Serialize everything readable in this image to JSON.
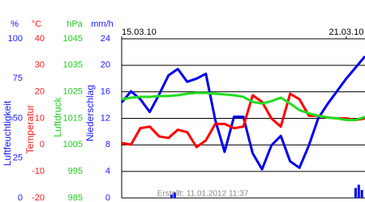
{
  "chart_data": {
    "type": "line",
    "xlim": [
      0,
      156
    ],
    "xticks": [
      {
        "value": 0,
        "label": "15.03.10"
      },
      {
        "value": 144,
        "label": "21.03.10"
      }
    ],
    "grid": true,
    "grid_axis": 3,
    "note": "Erstellt: 11.01.2012 11:37",
    "axes": [
      {
        "unit": "%",
        "label": "Luftfeuchtigkeit",
        "color": "#1a1aff",
        "ylim": [
          0,
          100
        ],
        "yticks": [
          0,
          25,
          50,
          75,
          100
        ]
      },
      {
        "unit": "°C",
        "label": "Temperatur",
        "color": "#ff1a1a",
        "ylim": [
          -20,
          40
        ],
        "yticks": [
          -20,
          -10,
          0,
          10,
          20,
          30,
          40
        ]
      },
      {
        "unit": "hPa",
        "label": "Luftdruck",
        "color": "#22cc22",
        "ylim": [
          985,
          1045
        ],
        "yticks": [
          985,
          995,
          1005,
          1015,
          1025,
          1035,
          1045
        ]
      },
      {
        "unit": "mm/h",
        "label": "Niederschlag",
        "color": "#1a1aff",
        "ylim": [
          0,
          24
        ],
        "yticks": [
          0,
          4,
          8,
          12,
          16,
          20,
          24
        ]
      }
    ],
    "x": [
      0,
      6,
      12,
      18,
      24,
      30,
      36,
      42,
      48,
      54,
      60,
      66,
      72,
      78,
      84,
      90,
      96,
      102,
      108,
      114,
      120,
      126,
      132,
      138,
      144,
      150,
      156
    ],
    "series": [
      {
        "type": "line",
        "axis": 0,
        "color": "#0000ee",
        "values": [
          60,
          67,
          62,
          54,
          65,
          77,
          81,
          73,
          75,
          78,
          49,
          29,
          51,
          51,
          28,
          18,
          33,
          39,
          23,
          19,
          33,
          50,
          59,
          67,
          75,
          82,
          89
        ]
      },
      {
        "type": "line",
        "axis": 1,
        "color": "#ff0000",
        "values": [
          0.7,
          0.1,
          6.3,
          6.9,
          3.2,
          2.6,
          5.7,
          4.8,
          -0.8,
          1.7,
          7.9,
          7.9,
          6.3,
          6.9,
          18.7,
          16.2,
          10.0,
          6.9,
          19.3,
          17.2,
          11.0,
          11.0,
          10.3,
          10.0,
          10.0,
          9.4,
          10.0
        ]
      },
      {
        "type": "line",
        "axis": 2,
        "color": "#22dd22",
        "values": [
          1022.2,
          1022.8,
          1023.1,
          1023.1,
          1023.4,
          1023.4,
          1023.7,
          1024.3,
          1024.6,
          1024.6,
          1024.3,
          1024.0,
          1023.7,
          1023.1,
          1021.2,
          1020.6,
          1021.5,
          1022.8,
          1020.6,
          1018.1,
          1016.9,
          1016.0,
          1015.3,
          1015.0,
          1014.4,
          1014.4,
          1015.6
        ]
      },
      {
        "type": "bar",
        "axis": 3,
        "color": "#0000ee",
        "x": [
          32,
          34,
          150,
          152,
          154
        ],
        "values": [
          0.5,
          0.8,
          1.5,
          2.0,
          1.2
        ]
      }
    ]
  }
}
